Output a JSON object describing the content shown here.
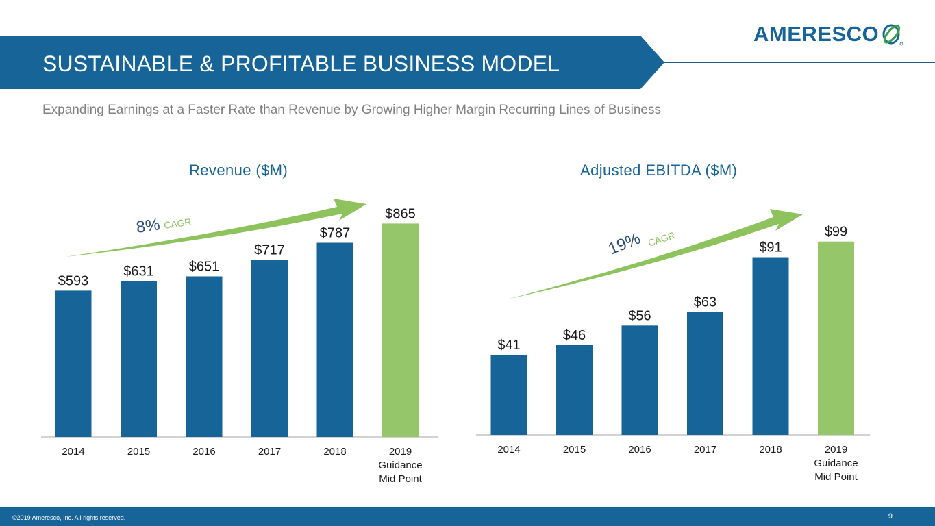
{
  "header": {
    "title": "SUSTAINABLE & PROFITABLE BUSINESS MODEL",
    "logo_text": "AMERESCO",
    "logo_icon": "globe-orbit-icon",
    "subtitle": "Expanding Earnings at a Faster Rate than Revenue by Growing Higher Margin Recurring Lines of Business"
  },
  "colors": {
    "brand_blue": "#176598",
    "bar_blue": "#176598",
    "guidance_green": "#95c66a",
    "arrow_green": "#8dc25d",
    "cagr_label_blue": "#2c4f7c",
    "subtitle_gray": "#808080"
  },
  "chart_data": [
    {
      "type": "bar",
      "title": "Revenue ($M)",
      "categories": [
        "2014",
        "2015",
        "2016",
        "2017",
        "2018",
        "2019\nGuidance\nMid Point"
      ],
      "values": [
        593,
        631,
        651,
        717,
        787,
        865
      ],
      "data_labels": [
        "$593",
        "$631",
        "$651",
        "$717",
        "$787",
        "$865"
      ],
      "highlight_last": true,
      "annotation": {
        "pct": "8%",
        "label": "CAGR"
      },
      "xlabel": "",
      "ylabel": "",
      "ylim": [
        0,
        950
      ],
      "grid": false
    },
    {
      "type": "bar",
      "title": "Adjusted EBITDA ($M)",
      "categories": [
        "2014",
        "2015",
        "2016",
        "2017",
        "2018",
        "2019\nGuidance\nMid Point"
      ],
      "values": [
        41,
        46,
        56,
        63,
        91,
        99
      ],
      "data_labels": [
        "$41",
        "$46",
        "$56",
        "$63",
        "$91",
        "$99"
      ],
      "highlight_last": true,
      "annotation": {
        "pct": "19%",
        "label": "CAGR"
      },
      "xlabel": "",
      "ylabel": "",
      "ylim": [
        0,
        113
      ],
      "grid": false
    }
  ],
  "footer": {
    "copyright": "©2019 Ameresco, Inc. All rights reserved.",
    "page_number": "9"
  }
}
